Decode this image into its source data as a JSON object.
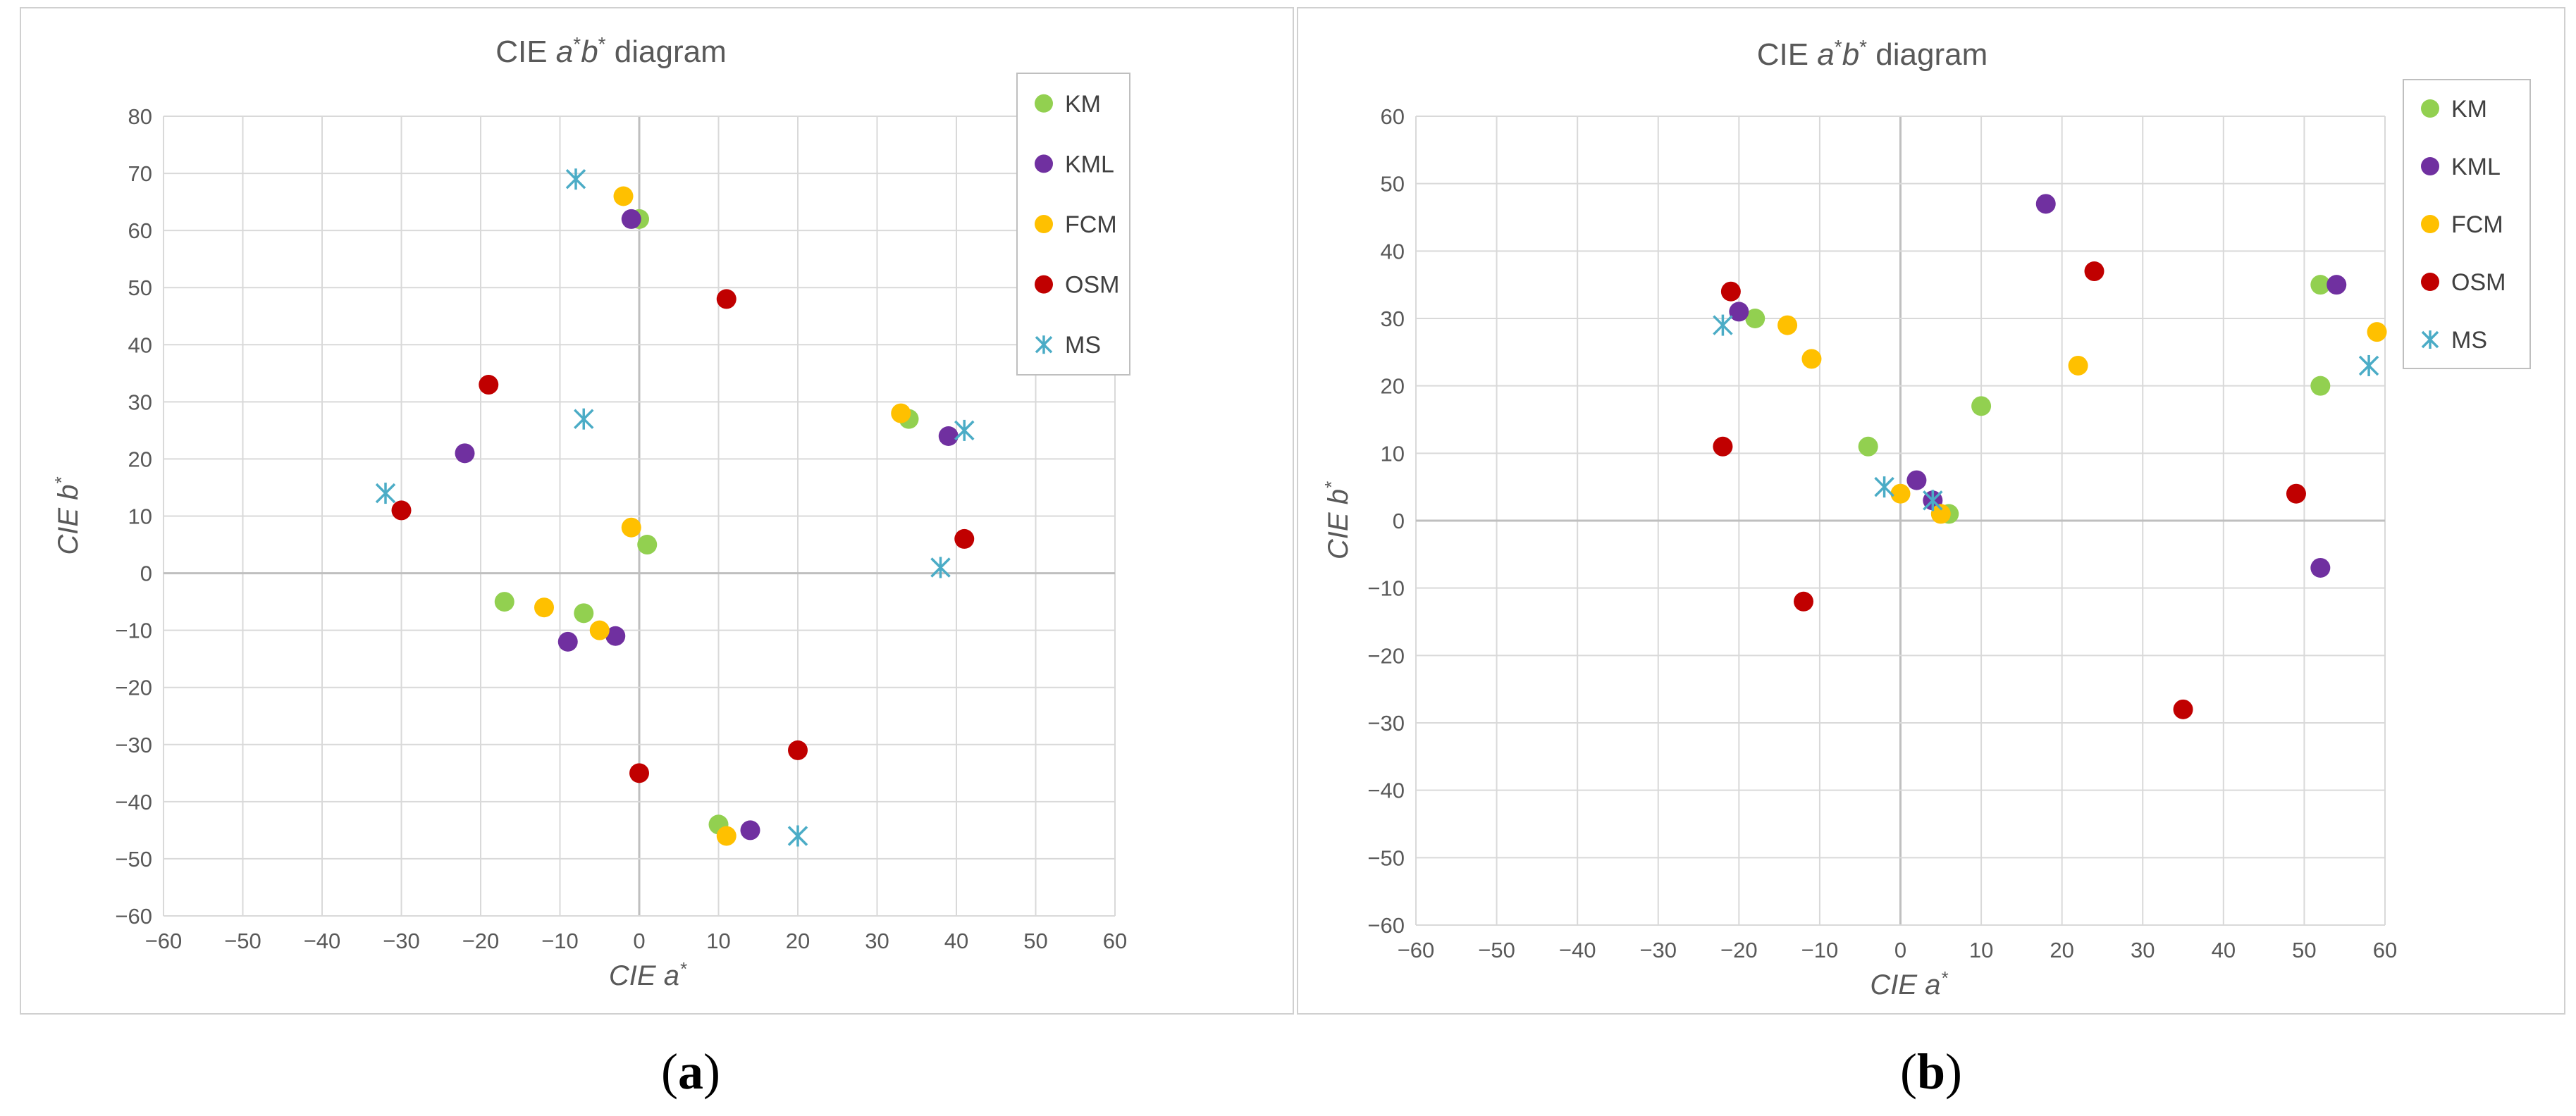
{
  "chart_data": [
    {
      "id": "a",
      "type": "scatter",
      "title": "CIE a*b* diagram",
      "title_parts": {
        "pre": "CIE ",
        "a": "a",
        "star1": "*",
        "b": "b",
        "star2": "*",
        "post": " diagram"
      },
      "xlabel_parts": {
        "pre": "CIE ",
        "var": "a",
        "star": "*"
      },
      "ylabel_parts": {
        "pre": "CIE ",
        "var": "b",
        "star": "*"
      },
      "xlabel": "CIE a*",
      "ylabel": "CIE b*",
      "xlim": [
        -60,
        60
      ],
      "ylim": [
        -60,
        80
      ],
      "xticks": [
        -60,
        -50,
        -40,
        -30,
        -20,
        -10,
        0,
        10,
        20,
        30,
        40,
        50,
        60
      ],
      "yticks": [
        -60,
        -50,
        -40,
        -30,
        -20,
        -10,
        0,
        10,
        20,
        30,
        40,
        50,
        60,
        70,
        80
      ],
      "grid": true,
      "legend_position": "top-right",
      "caption": "(a)",
      "series": [
        {
          "name": "KM",
          "marker": "circle",
          "color": "#92d050",
          "points": [
            [
              0,
              62
            ],
            [
              34,
              27
            ],
            [
              1,
              5
            ],
            [
              -17,
              -5
            ],
            [
              -7,
              -7
            ],
            [
              10,
              -44
            ]
          ]
        },
        {
          "name": "KML",
          "marker": "circle",
          "color": "#7030a0",
          "points": [
            [
              -1,
              62
            ],
            [
              39,
              24
            ],
            [
              -22,
              21
            ],
            [
              -9,
              -12
            ],
            [
              -3,
              -11
            ],
            [
              14,
              -45
            ]
          ]
        },
        {
          "name": "FCM",
          "marker": "circle",
          "color": "#ffc000",
          "points": [
            [
              -2,
              66
            ],
            [
              33,
              28
            ],
            [
              -1,
              8
            ],
            [
              -12,
              -6
            ],
            [
              -5,
              -10
            ],
            [
              11,
              -46
            ]
          ]
        },
        {
          "name": "OSM",
          "marker": "circle",
          "color": "#c00000",
          "points": [
            [
              11,
              48
            ],
            [
              -19,
              33
            ],
            [
              -30,
              11
            ],
            [
              41,
              6
            ],
            [
              20,
              -31
            ],
            [
              0,
              -35
            ]
          ]
        },
        {
          "name": "MS",
          "marker": "asterisk",
          "color": "#4bacc6",
          "points": [
            [
              -8,
              69
            ],
            [
              -7,
              27
            ],
            [
              -32,
              14
            ],
            [
              41,
              25
            ],
            [
              38,
              1
            ],
            [
              20,
              -46
            ]
          ]
        }
      ]
    },
    {
      "id": "b",
      "type": "scatter",
      "title": "CIE a*b* diagram",
      "title_parts": {
        "pre": "CIE ",
        "a": "a",
        "star1": "*",
        "b": "b",
        "star2": "*",
        "post": " diagram"
      },
      "xlabel_parts": {
        "pre": "CIE ",
        "var": "a",
        "star": "*"
      },
      "ylabel_parts": {
        "pre": "CIE ",
        "var": "b",
        "star": "*"
      },
      "xlabel": "CIE a*",
      "ylabel": "CIE b*",
      "xlim": [
        -60,
        60
      ],
      "ylim": [
        -60,
        60
      ],
      "xticks": [
        -60,
        -50,
        -40,
        -30,
        -20,
        -10,
        0,
        10,
        20,
        30,
        40,
        50,
        60
      ],
      "yticks": [
        -60,
        -50,
        -40,
        -30,
        -20,
        -10,
        0,
        10,
        20,
        30,
        40,
        50,
        60
      ],
      "grid": true,
      "legend_position": "top-right",
      "caption": "(b)",
      "series": [
        {
          "name": "KM",
          "marker": "circle",
          "color": "#92d050",
          "points": [
            [
              -18,
              30
            ],
            [
              -4,
              11
            ],
            [
              10,
              17
            ],
            [
              6,
              1
            ],
            [
              52,
              35
            ],
            [
              52,
              20
            ]
          ]
        },
        {
          "name": "KML",
          "marker": "circle",
          "color": "#7030a0",
          "points": [
            [
              18,
              47
            ],
            [
              -20,
              31
            ],
            [
              2,
              6
            ],
            [
              4,
              3
            ],
            [
              54,
              35
            ],
            [
              52,
              -7
            ]
          ]
        },
        {
          "name": "FCM",
          "marker": "circle",
          "color": "#ffc000",
          "points": [
            [
              -14,
              29
            ],
            [
              -11,
              24
            ],
            [
              0,
              4
            ],
            [
              5,
              1
            ],
            [
              22,
              23
            ],
            [
              59,
              28
            ]
          ]
        },
        {
          "name": "OSM",
          "marker": "circle",
          "color": "#c00000",
          "points": [
            [
              -21,
              34
            ],
            [
              24,
              37
            ],
            [
              -22,
              11
            ],
            [
              -12,
              -12
            ],
            [
              49,
              4
            ],
            [
              35,
              -28
            ]
          ]
        },
        {
          "name": "MS",
          "marker": "asterisk",
          "color": "#4bacc6",
          "points": [
            [
              -22,
              29
            ],
            [
              -2,
              5
            ],
            [
              4,
              3
            ],
            [
              58,
              23
            ]
          ]
        }
      ]
    }
  ],
  "captions": {
    "a": {
      "open": "(",
      "letter": "a",
      "close": ")"
    },
    "b": {
      "open": "(",
      "letter": "b",
      "close": ")"
    }
  }
}
